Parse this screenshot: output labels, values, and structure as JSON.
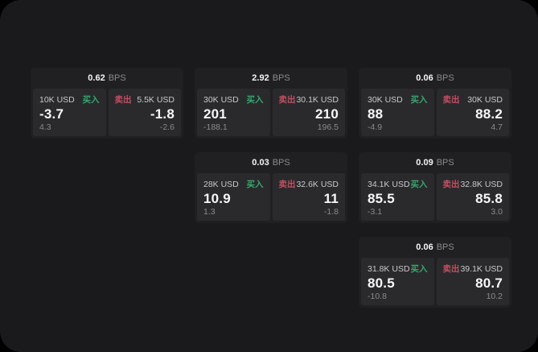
{
  "labels": {
    "bps": "BPS",
    "buy": "买入",
    "sell": "卖出"
  },
  "colors": {
    "buy": "#38a56d",
    "sell": "#c25060"
  },
  "cards": [
    {
      "row": 1,
      "col": 1,
      "bps": "0.62",
      "buy": {
        "notional": "10K USD",
        "price": "-3.7",
        "delta": "4.3"
      },
      "sell": {
        "notional": "5.5K USD",
        "price": "-1.8",
        "delta": "-2.6"
      }
    },
    {
      "row": 1,
      "col": 2,
      "bps": "2.92",
      "buy": {
        "notional": "30K USD",
        "price": "201",
        "delta": "-188.1"
      },
      "sell": {
        "notional": "30.1K USD",
        "price": "210",
        "delta": "196.5"
      }
    },
    {
      "row": 1,
      "col": 3,
      "bps": "0.06",
      "buy": {
        "notional": "30K USD",
        "price": "88",
        "delta": "-4.9"
      },
      "sell": {
        "notional": "30K USD",
        "price": "88.2",
        "delta": "4.7"
      }
    },
    {
      "row": 2,
      "col": 2,
      "bps": "0.03",
      "buy": {
        "notional": "28K USD",
        "price": "10.9",
        "delta": "1.3"
      },
      "sell": {
        "notional": "32.6K USD",
        "price": "11",
        "delta": "-1.8"
      }
    },
    {
      "row": 2,
      "col": 3,
      "bps": "0.09",
      "buy": {
        "notional": "34.1K USD",
        "price": "85.5",
        "delta": "-3.1"
      },
      "sell": {
        "notional": "32.8K USD",
        "price": "85.8",
        "delta": "3.0"
      }
    },
    {
      "row": 3,
      "col": 3,
      "bps": "0.06",
      "buy": {
        "notional": "31.8K USD",
        "price": "80.5",
        "delta": "-10.8"
      },
      "sell": {
        "notional": "39.1K USD",
        "price": "80.7",
        "delta": "10.2"
      }
    }
  ]
}
